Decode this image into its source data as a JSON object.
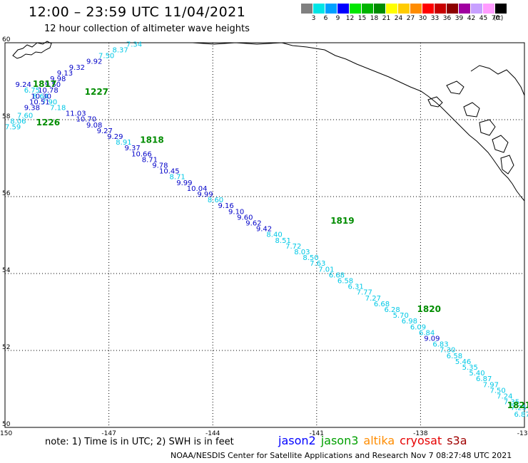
{
  "header": {
    "title": "12:00 – 23:59 UTC 11/04/2021",
    "subtitle": "12 hour collection of altimeter wave heights"
  },
  "legend": {
    "unit_label": "(ft)",
    "items": [
      {
        "value": "3",
        "color": "#808080"
      },
      {
        "value": "6",
        "color": "#00e5e5"
      },
      {
        "value": "9",
        "color": "#00a0ff"
      },
      {
        "value": "12",
        "color": "#0000ff"
      },
      {
        "value": "15",
        "color": "#00e600"
      },
      {
        "value": "18",
        "color": "#00b400"
      },
      {
        "value": "21",
        "color": "#008c00"
      },
      {
        "value": "24",
        "color": "#ffff00"
      },
      {
        "value": "27",
        "color": "#ffcc00"
      },
      {
        "value": "30",
        "color": "#ff8c00"
      },
      {
        "value": "33",
        "color": "#ff0000"
      },
      {
        "value": "36",
        "color": "#c80000"
      },
      {
        "value": "39",
        "color": "#8c0000"
      },
      {
        "value": "42",
        "color": "#a000a0"
      },
      {
        "value": "45",
        "color": "#c8a0ff"
      },
      {
        "value": "70",
        "color": "#ff9cff"
      },
      {
        "value": "",
        "color": "#000000"
      }
    ]
  },
  "map": {
    "lon_range": [
      -150,
      -135
    ],
    "lat_range": [
      50,
      60
    ],
    "lon_ticks": [
      "-150",
      "-147",
      "-144",
      "-141",
      "-138",
      "-135"
    ],
    "lat_ticks": [
      "60",
      "58",
      "56",
      "54",
      "52",
      "50"
    ],
    "colors": {
      "jason2": "#0000c8",
      "jason3_text": "#00c8e6",
      "pass": "#008c00"
    },
    "pass_labels": [
      {
        "text": "1817",
        "lon": -149.2,
        "lat": 58.85
      },
      {
        "text": "1227",
        "lon": -147.7,
        "lat": 58.65
      },
      {
        "text": "1226",
        "lon": -149.1,
        "lat": 57.85
      },
      {
        "text": "1818",
        "lon": -146.1,
        "lat": 57.4
      },
      {
        "text": "1819",
        "lon": -140.6,
        "lat": 55.3
      },
      {
        "text": "1820",
        "lon": -138.1,
        "lat": 53.0
      },
      {
        "text": "1821",
        "lon": -135.5,
        "lat": 50.5
      }
    ],
    "track_a": [
      {
        "text": "9.24",
        "lon": -149.7,
        "lat": 58.85,
        "c": "b"
      },
      {
        "text": "6.75",
        "lon": -149.45,
        "lat": 58.7,
        "c": "c"
      },
      {
        "text": "8.64",
        "lon": -149.2,
        "lat": 58.55,
        "c": "c"
      },
      {
        "text": "7.90",
        "lon": -148.95,
        "lat": 58.4,
        "c": "c"
      },
      {
        "text": "7.18",
        "lon": -148.7,
        "lat": 58.25,
        "c": "c"
      },
      {
        "text": "11.03",
        "lon": -148.25,
        "lat": 58.1,
        "c": "b"
      },
      {
        "text": "10.70",
        "lon": -147.95,
        "lat": 57.95,
        "c": "b"
      },
      {
        "text": "9.08",
        "lon": -147.65,
        "lat": 57.8,
        "c": "b"
      },
      {
        "text": "9.27",
        "lon": -147.35,
        "lat": 57.65,
        "c": "b"
      },
      {
        "text": "9.29",
        "lon": -147.05,
        "lat": 57.5,
        "c": "b"
      },
      {
        "text": "8.91",
        "lon": -146.8,
        "lat": 57.35,
        "c": "c"
      },
      {
        "text": "9.37",
        "lon": -146.55,
        "lat": 57.2,
        "c": "b"
      },
      {
        "text": "10.66",
        "lon": -146.35,
        "lat": 57.05,
        "c": "b"
      },
      {
        "text": "8.71",
        "lon": -146.05,
        "lat": 56.9,
        "c": "b"
      },
      {
        "text": "9.78",
        "lon": -145.75,
        "lat": 56.75,
        "c": "b"
      },
      {
        "text": "10.45",
        "lon": -145.55,
        "lat": 56.6,
        "c": "b"
      },
      {
        "text": "8.71",
        "lon": -145.25,
        "lat": 56.45,
        "c": "c"
      },
      {
        "text": "9.99",
        "lon": -145.05,
        "lat": 56.3,
        "c": "b"
      },
      {
        "text": "10.04",
        "lon": -144.75,
        "lat": 56.15,
        "c": "b"
      },
      {
        "text": "9.99",
        "lon": -144.45,
        "lat": 56.0,
        "c": "b"
      },
      {
        "text": "8.60",
        "lon": -144.15,
        "lat": 55.85,
        "c": "c"
      },
      {
        "text": "9.16",
        "lon": -143.85,
        "lat": 55.7,
        "c": "b"
      },
      {
        "text": "9.10",
        "lon": -143.55,
        "lat": 55.55,
        "c": "b"
      },
      {
        "text": "9.60",
        "lon": -143.3,
        "lat": 55.4,
        "c": "b"
      },
      {
        "text": "9.62",
        "lon": -143.05,
        "lat": 55.25,
        "c": "b"
      },
      {
        "text": "9.42",
        "lon": -142.75,
        "lat": 55.1,
        "c": "b"
      },
      {
        "text": "8.40",
        "lon": -142.45,
        "lat": 54.95,
        "c": "c"
      },
      {
        "text": "8.51",
        "lon": -142.2,
        "lat": 54.8,
        "c": "c"
      },
      {
        "text": "7.72",
        "lon": -141.9,
        "lat": 54.65,
        "c": "c"
      },
      {
        "text": "8.03",
        "lon": -141.65,
        "lat": 54.5,
        "c": "c"
      },
      {
        "text": "8.50",
        "lon": -141.4,
        "lat": 54.35,
        "c": "c"
      },
      {
        "text": "7.63",
        "lon": -141.2,
        "lat": 54.2,
        "c": "c"
      },
      {
        "text": "7.01",
        "lon": -140.95,
        "lat": 54.05,
        "c": "c"
      },
      {
        "text": "6.68",
        "lon": -140.65,
        "lat": 53.9,
        "c": "c"
      },
      {
        "text": "6.58",
        "lon": -140.4,
        "lat": 53.75,
        "c": "c"
      },
      {
        "text": "6.31",
        "lon": -140.1,
        "lat": 53.6,
        "c": "c"
      },
      {
        "text": "7.77",
        "lon": -139.85,
        "lat": 53.45,
        "c": "c"
      },
      {
        "text": "7.27",
        "lon": -139.6,
        "lat": 53.3,
        "c": "c"
      },
      {
        "text": "6.68",
        "lon": -139.35,
        "lat": 53.15,
        "c": "c"
      },
      {
        "text": "6.28",
        "lon": -139.05,
        "lat": 53.0,
        "c": "c"
      },
      {
        "text": "5.70",
        "lon": -138.8,
        "lat": 52.85,
        "c": "c"
      },
      {
        "text": "6.98",
        "lon": -138.55,
        "lat": 52.7,
        "c": "c"
      },
      {
        "text": "6.09",
        "lon": -138.3,
        "lat": 52.55,
        "c": "c"
      },
      {
        "text": "6.84",
        "lon": -138.05,
        "lat": 52.4,
        "c": "c"
      },
      {
        "text": "9.09",
        "lon": -137.9,
        "lat": 52.25,
        "c": "b"
      },
      {
        "text": "6.83",
        "lon": -137.65,
        "lat": 52.1,
        "c": "c"
      },
      {
        "text": "7.30",
        "lon": -137.45,
        "lat": 51.95,
        "c": "c"
      },
      {
        "text": "6.58",
        "lon": -137.25,
        "lat": 51.8,
        "c": "c"
      },
      {
        "text": "5.46",
        "lon": -137.0,
        "lat": 51.65,
        "c": "c"
      },
      {
        "text": "5.35",
        "lon": -136.8,
        "lat": 51.5,
        "c": "c"
      },
      {
        "text": "5.40",
        "lon": -136.6,
        "lat": 51.35,
        "c": "c"
      },
      {
        "text": "6.87",
        "lon": -136.4,
        "lat": 51.2,
        "c": "c"
      },
      {
        "text": "7.97",
        "lon": -136.2,
        "lat": 51.05,
        "c": "c"
      },
      {
        "text": "7.50",
        "lon": -136.0,
        "lat": 50.9,
        "c": "c"
      },
      {
        "text": "7.24",
        "lon": -135.8,
        "lat": 50.75,
        "c": "c"
      },
      {
        "text": "7.35",
        "lon": -135.6,
        "lat": 50.6,
        "c": "c"
      },
      {
        "text": "7.25",
        "lon": -135.4,
        "lat": 50.45,
        "c": "c"
      },
      {
        "text": "6.87",
        "lon": -135.3,
        "lat": 50.28,
        "c": "c"
      }
    ],
    "track_b": [
      {
        "text": "7.34",
        "lon": -146.5,
        "lat": 59.9,
        "c": "c"
      },
      {
        "text": "8.37",
        "lon": -146.9,
        "lat": 59.75,
        "c": "c"
      },
      {
        "text": "7.50",
        "lon": -147.3,
        "lat": 59.6,
        "c": "c"
      },
      {
        "text": "9.92",
        "lon": -147.65,
        "lat": 59.45,
        "c": "b"
      },
      {
        "text": "9.32",
        "lon": -148.15,
        "lat": 59.3,
        "c": "b"
      },
      {
        "text": "9.13",
        "lon": -148.5,
        "lat": 59.15,
        "c": "b"
      },
      {
        "text": "9.98",
        "lon": -148.7,
        "lat": 59.0,
        "c": "b"
      },
      {
        "text": "9.50",
        "lon": -148.85,
        "lat": 58.85,
        "c": "b"
      },
      {
        "text": "10.78",
        "lon": -149.05,
        "lat": 58.7,
        "c": "b"
      },
      {
        "text": "10.30",
        "lon": -149.25,
        "lat": 58.55,
        "c": "b"
      },
      {
        "text": "10.51",
        "lon": -149.3,
        "lat": 58.4,
        "c": "b"
      },
      {
        "text": "9.38",
        "lon": -149.45,
        "lat": 58.25,
        "c": "b"
      },
      {
        "text": "7.60",
        "lon": -149.65,
        "lat": 58.05,
        "c": "c"
      },
      {
        "text": "8.06",
        "lon": -149.85,
        "lat": 57.9,
        "c": "c"
      },
      {
        "text": "7.59",
        "lon": -150.0,
        "lat": 57.75,
        "c": "c"
      }
    ]
  },
  "footer": {
    "note": "note: 1) Time is in UTC; 2) SWH is in feet",
    "satellites": [
      {
        "name": "jason2",
        "color": "#0000ff"
      },
      {
        "name": "jason3",
        "color": "#00a000"
      },
      {
        "name": "altika",
        "color": "#ff8c00"
      },
      {
        "name": "cryosat",
        "color": "#e60000"
      },
      {
        "name": "s3a",
        "color": "#a00000"
      }
    ],
    "credit": "NOAA/NESDIS Center for Satellite Applications and Research   Nov  7 08:27:48 UTC 2021"
  }
}
